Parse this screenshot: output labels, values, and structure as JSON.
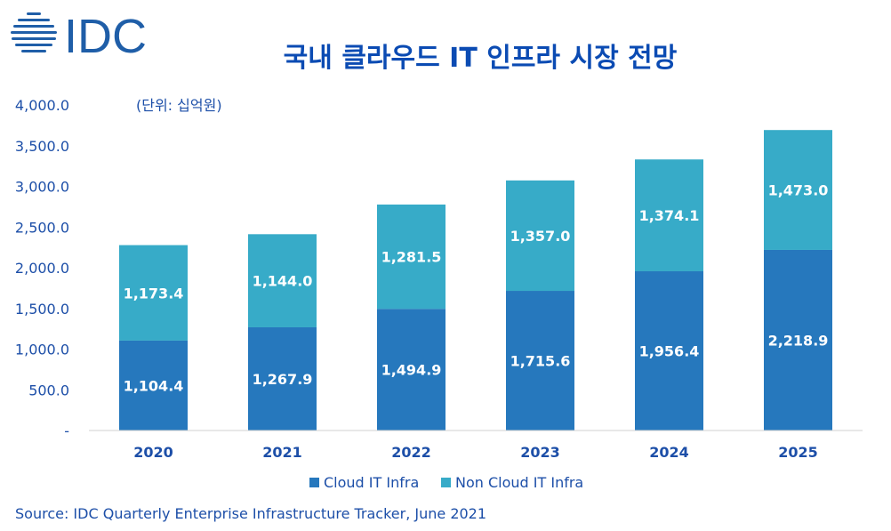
{
  "title": "국내 클라우드 IT 인프라 시장 전망",
  "logo_text": "IDC",
  "source": "Source: IDC Quarterly Enterprise Infrastructure Tracker, June 2021",
  "colors": {
    "cloud": "#2678bd",
    "non_cloud": "#37abc8",
    "title": "#0b4bb3",
    "axis_text": "#1d4fa8",
    "logo": "#1f5ea8"
  },
  "chart_data": {
    "type": "bar",
    "stacked": true,
    "unit_label": "(단위: 십억원)",
    "categories": [
      "2020",
      "2021",
      "2022",
      "2023",
      "2024",
      "2025"
    ],
    "series": [
      {
        "name": "Cloud IT Infra",
        "values": [
          1104.4,
          1267.9,
          1494.9,
          1715.6,
          1956.4,
          2218.9
        ],
        "labels": [
          "1,104.4",
          "1,267.9",
          "1,494.9",
          "1,715.6",
          "1,956.4",
          "2,218.9"
        ]
      },
      {
        "name": "Non Cloud IT Infra",
        "values": [
          1173.4,
          1144.0,
          1281.5,
          1357.0,
          1374.1,
          1473.0
        ],
        "labels": [
          "1,173.4",
          "1,144.0",
          "1,281.5",
          "1,357.0",
          "1,374.1",
          "1,473.0"
        ]
      }
    ],
    "ylim": [
      0,
      4000
    ],
    "yticks": [
      0,
      500,
      1000,
      1500,
      2000,
      2500,
      3000,
      3500,
      4000
    ],
    "ytick_labels": [
      "-",
      "500.0",
      "1,000.0",
      "1,500.0",
      "2,000.0",
      "2,500.0",
      "3,000.0",
      "3,500.0",
      "4,000.0"
    ],
    "grid": false,
    "legend_position": "bottom"
  }
}
